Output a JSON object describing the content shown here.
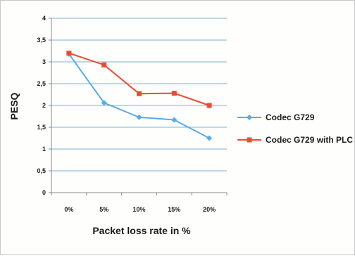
{
  "chart_data": {
    "type": "line",
    "title": "",
    "xlabel": "Packet loss rate in %",
    "ylabel": "PESQ",
    "categories": [
      "0%",
      "5%",
      "10%",
      "15%",
      "20%"
    ],
    "ylim": [
      0,
      4
    ],
    "yticks": [
      "0",
      "0,5",
      "1",
      "1,5",
      "2",
      "2,5",
      "3",
      "3,5",
      "4"
    ],
    "grid": true,
    "legend_position": "right",
    "series": [
      {
        "name": "Codec G729",
        "color": "#5aaae6",
        "marker": "diamond",
        "values": [
          3.18,
          2.06,
          1.73,
          1.67,
          1.25
        ]
      },
      {
        "name": "Codec G729 with PLC",
        "color": "#ee4a2e",
        "marker": "square",
        "values": [
          3.2,
          2.93,
          2.27,
          2.28,
          2.0
        ]
      }
    ]
  }
}
